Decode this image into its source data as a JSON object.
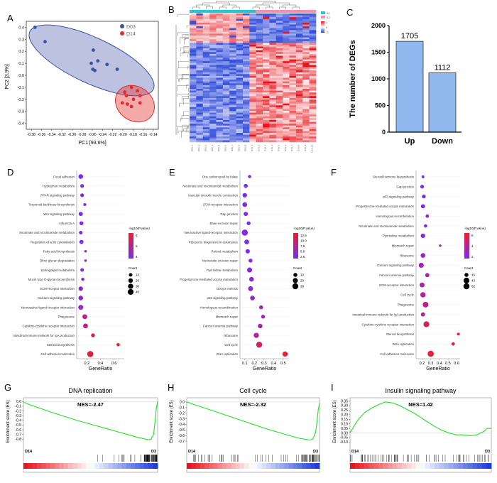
{
  "panels": {
    "A": "A",
    "B": "B",
    "C": "C",
    "D": "D",
    "E": "E",
    "F": "F",
    "G": "G",
    "H": "H",
    "I": "I"
  },
  "colors": {
    "d03": "#3f4fa3",
    "d14": "#e62a2a",
    "bar": "#8fb8ee",
    "gsea": "#22e026",
    "dot_high": "#ee1c2e",
    "dot_low": "#7a2cf0",
    "heat_low": "#1f3cd8",
    "heat_mid": "#ffffff",
    "heat_high": "#e6141c",
    "group_a": "#23c6d3",
    "group_b": "#f18fb6"
  },
  "chart_data": [
    {
      "id": "A",
      "type": "scatter",
      "xlabel": "PC1 [93.6%]",
      "ylabel": "PC2 [3.9%]",
      "xlim": [
        -0.39,
        -0.13
      ],
      "ylim": [
        -0.45,
        0.45
      ],
      "xticks": [
        "-0.38",
        "-0.36",
        "-0.34",
        "-0.32",
        "-0.30",
        "-0.28",
        "-0.26",
        "-0.24",
        "-0.22",
        "-0.20",
        "-0.18",
        "-0.16",
        "-0.14"
      ],
      "yticks": [
        "-0.4",
        "-0.3",
        "-0.2",
        "-0.1",
        "0.0",
        "0.1",
        "0.2",
        "0.3",
        "0.4"
      ],
      "legend": [
        "D03",
        "D14"
      ],
      "series": [
        {
          "name": "D03",
          "points": [
            [
              -0.373,
              0.4
            ],
            [
              -0.353,
              0.28
            ],
            [
              -0.258,
              0.21
            ],
            [
              -0.249,
              0.12
            ],
            [
              -0.262,
              0.1
            ],
            [
              -0.259,
              0.05
            ],
            [
              -0.231,
              0.09
            ],
            [
              -0.211,
              0.05
            ],
            [
              -0.255,
              0.04
            ]
          ]
        },
        {
          "name": "D14",
          "points": [
            [
              -0.183,
              -0.1
            ],
            [
              -0.171,
              -0.13
            ],
            [
              -0.196,
              -0.14
            ],
            [
              -0.193,
              -0.17
            ],
            [
              -0.166,
              -0.17
            ],
            [
              -0.179,
              -0.2
            ],
            [
              -0.201,
              -0.23
            ],
            [
              -0.166,
              -0.23
            ],
            [
              -0.191,
              -0.24
            ],
            [
              -0.183,
              -0.26
            ]
          ]
        }
      ]
    },
    {
      "id": "B",
      "type": "heatmap",
      "legend_labels": [
        "A1",
        "A2"
      ],
      "color_scale": [
        "2",
        "0",
        "-2"
      ],
      "column_labels": [
        "D03_1",
        "D03_2",
        "D03_3",
        "D03_4",
        "D03_5",
        "D03_6",
        "D03_7",
        "D03_8",
        "D03_9",
        "D14_1",
        "D14_2",
        "D14_3",
        "D14_4",
        "D14_5",
        "D14_6",
        "D14_7",
        "D14_8",
        "D14_9",
        "D14_10"
      ]
    },
    {
      "id": "C",
      "type": "bar",
      "categories": [
        "Up",
        "Down"
      ],
      "values": [
        1705,
        1112
      ],
      "ylabel": "The number of DEGs",
      "ylim": [
        0,
        2000
      ],
      "yticks": [
        "0",
        "500",
        "1000",
        "1500",
        "2000"
      ]
    },
    {
      "id": "D",
      "type": "scatter",
      "xlabel": "GeneRatio",
      "xlim": [
        0.05,
        0.75
      ],
      "xticks": [
        "0.2",
        "0.4",
        "0.6"
      ],
      "terms": [
        "Focal adhesion",
        "Tryptophan metabolism",
        "PPAR signaling pathway",
        "Terpenoid backbone biosynthesis",
        "Wnt signaling pathway",
        "Influenza A",
        "Nicotinate and nicotinamide metabolism",
        "Regulation of actin cytoskeleton",
        "Fatty acid biosynthesis",
        "Other glycan degradation",
        "Sphingolipid metabolism",
        "Mucin type O-glycan biosynthesis",
        "ECM-receptor interaction",
        "Calcium signaling pathway",
        "Neuroactive ligand-receptor interaction",
        "Phagosome",
        "Cytokine-cytokine receptor interaction",
        "Intestinal immune network for IgA production",
        "Steroid biosynthesis",
        "Cell adhesion molecules"
      ],
      "ratio": [
        0.11,
        0.13,
        0.13,
        0.17,
        0.11,
        0.12,
        0.11,
        0.12,
        0.18,
        0.18,
        0.13,
        0.14,
        0.11,
        0.11,
        0.11,
        0.17,
        0.18,
        0.29,
        0.66,
        0.25
      ],
      "count": [
        22,
        12,
        11,
        5,
        16,
        14,
        10,
        16,
        3,
        3,
        10,
        7,
        20,
        22,
        26,
        24,
        25,
        13,
        8,
        45
      ],
      "neglogp": [
        3.0,
        3.3,
        3.5,
        3.4,
        3.0,
        3.3,
        3.1,
        3.0,
        4.2,
        3.5,
        3.6,
        3.7,
        4.0,
        4.0,
        4.2,
        5.5,
        5.9,
        6.9,
        8.0,
        7.5
      ],
      "color_label": "-log10(P.value)",
      "color_ticks": [
        "6",
        "5",
        "4"
      ],
      "size_label": "Count",
      "size_ticks": [
        "10",
        "20",
        "30",
        "40"
      ]
    },
    {
      "id": "E",
      "type": "scatter",
      "xlabel": "GeneRatio",
      "xlim": [
        0.05,
        0.56
      ],
      "xticks": [
        "0.1",
        "0.2",
        "0.3",
        "0.4",
        "0.5"
      ],
      "terms": [
        "One carbon pool by folate",
        "Nicotinate and nicotinamide metabolism",
        "Vascular smooth muscle contraction",
        "ECM-receptor interaction",
        "Gap junction",
        "Base excision repair",
        "Neuroactive ligand-receptor interaction",
        "Ribosome biogenesis in eukaryotes",
        "Retinol metabolism",
        "Nucleotide excision repair",
        "Pyrimidine metabolism",
        "Progesterone-mediated oocyte maturation",
        "Oocyte meiosis",
        "p53 signaling pathway",
        "Homologous recombination",
        "Mismatch repair",
        "Fanconi anemia pathway",
        "Ribosome",
        "Cell cycle",
        "DNA replication"
      ],
      "ratio": [
        0.15,
        0.11,
        0.1,
        0.1,
        0.11,
        0.14,
        0.1,
        0.12,
        0.13,
        0.16,
        0.15,
        0.17,
        0.16,
        0.18,
        0.27,
        0.29,
        0.26,
        0.22,
        0.25,
        0.52
      ],
      "count": [
        5,
        10,
        14,
        16,
        12,
        9,
        32,
        17,
        13,
        10,
        19,
        16,
        18,
        16,
        10,
        9,
        15,
        21,
        30,
        21
      ],
      "neglogp": [
        5.0,
        5.0,
        5.0,
        5.2,
        5.1,
        5.3,
        5.6,
        5.4,
        5.3,
        5.4,
        6.0,
        6.1,
        6.2,
        6.6,
        7.4,
        7.6,
        7.5,
        8.3,
        10.0,
        12.0
      ],
      "color_label": "-log10(P.value)",
      "color_ticks": [
        "12.5",
        "10.0",
        "7.5",
        "5.0",
        "2.5"
      ],
      "size_label": "Count",
      "size_ticks": [
        "10",
        "20",
        "30"
      ]
    },
    {
      "id": "F",
      "type": "scatter",
      "xlabel": "GeneRatio",
      "xlim": [
        0.13,
        0.64
      ],
      "xticks": [
        "0.2",
        "0.3",
        "0.4",
        "0.5",
        "0.6"
      ],
      "terms": [
        "Steroid hormone biosynthesis",
        "Gap junction",
        "p53 signaling pathway",
        "Progesterone-mediated oocyte maturation",
        "Homologous recombination",
        "Nicotinate and nicotinamide metabolism",
        "Pyrimidine metabolism",
        "Mismatch repair",
        "Ribosome",
        "Calcium signaling pathway",
        "Fanconi anemia pathway",
        "ECM-receptor interaction",
        "Cell cycle",
        "Phagosome",
        "Intestinal immune network for IgA production",
        "Cytokine-cytokine receptor interaction",
        "Steroid biosynthesis",
        "DNA replication",
        "Cell adhesion molecules"
      ],
      "ratio": [
        0.21,
        0.2,
        0.22,
        0.21,
        0.26,
        0.24,
        0.21,
        0.41,
        0.21,
        0.19,
        0.26,
        0.2,
        0.21,
        0.24,
        0.21,
        0.25,
        0.62,
        0.56,
        0.3
      ],
      "count": [
        5,
        12,
        13,
        17,
        10,
        9,
        20,
        3,
        24,
        30,
        17,
        27,
        34,
        40,
        17,
        43,
        5,
        9,
        48
      ],
      "neglogp": [
        1.8,
        2.0,
        2.0,
        2.2,
        2.7,
        2.5,
        2.5,
        4.5,
        2.8,
        3.2,
        3.4,
        3.5,
        4.0,
        4.3,
        4.0,
        5.5,
        6.5,
        6.0,
        6.2
      ],
      "color_label": "-log10(P.value)",
      "color_ticks": [
        "6",
        "4",
        "2"
      ],
      "size_label": "Count",
      "size_ticks": [
        "15",
        "43",
        "62"
      ]
    },
    {
      "id": "G",
      "type": "line",
      "title": "DNA replication",
      "nes": "NES=-2.47",
      "ylabel": "Enrichment score (ES)",
      "ylim": [
        -0.9,
        0.05
      ],
      "yticks": [
        "0.0",
        "-0.1",
        "-0.2",
        "-0.3",
        "-0.4",
        "-0.5",
        "-0.6",
        "-0.7",
        "-0.8"
      ],
      "left_label": "D14",
      "right_label": "D3",
      "x": [
        0,
        0.05,
        0.1,
        0.2,
        0.3,
        0.4,
        0.5,
        0.6,
        0.7,
        0.8,
        0.85,
        0.9,
        0.93,
        0.95,
        0.97,
        0.98,
        0.99,
        1.0
      ],
      "y": [
        -0.01,
        -0.07,
        -0.12,
        -0.22,
        -0.31,
        -0.4,
        -0.48,
        -0.56,
        -0.64,
        -0.72,
        -0.76,
        -0.79,
        -0.81,
        -0.8,
        -0.7,
        -0.45,
        -0.15,
        0.0
      ]
    },
    {
      "id": "H",
      "type": "line",
      "title": "Cell cycle",
      "nes": "NES=-2.32",
      "ylabel": "Enrichment score (ES)",
      "ylim": [
        -0.75,
        0.05
      ],
      "yticks": [
        "0.0",
        "-0.1",
        "-0.2",
        "-0.3",
        "-0.4",
        "-0.5",
        "-0.6",
        "-0.7"
      ],
      "left_label": "D14",
      "right_label": "D3",
      "x": [
        0,
        0.05,
        0.1,
        0.2,
        0.3,
        0.4,
        0.5,
        0.6,
        0.7,
        0.8,
        0.85,
        0.9,
        0.93,
        0.95,
        0.97,
        0.98,
        0.99,
        1.0
      ],
      "y": [
        0.0,
        -0.04,
        -0.08,
        -0.16,
        -0.24,
        -0.32,
        -0.4,
        -0.48,
        -0.55,
        -0.62,
        -0.65,
        -0.67,
        -0.68,
        -0.66,
        -0.55,
        -0.38,
        -0.15,
        -0.02
      ]
    },
    {
      "id": "I",
      "type": "line",
      "title": "Insulin signaling pathway",
      "nes": "NES=1.42",
      "ylabel": "Enrichment score (ES)",
      "ylim": [
        -0.12,
        0.37
      ],
      "yticks": [
        "0.35",
        "0.30",
        "0.25",
        "0.20",
        "0.15",
        "0.10",
        "0.05",
        "0.00",
        "-0.05",
        "-0.10"
      ],
      "left_label": "D14",
      "right_label": "D3",
      "x": [
        0,
        0.03,
        0.06,
        0.1,
        0.15,
        0.2,
        0.25,
        0.3,
        0.35,
        0.4,
        0.45,
        0.5,
        0.55,
        0.6,
        0.65,
        0.7,
        0.75,
        0.8,
        0.85,
        0.9,
        0.95,
        0.97,
        1.0
      ],
      "y": [
        0.0,
        0.08,
        0.15,
        0.22,
        0.27,
        0.31,
        0.34,
        0.33,
        0.3,
        0.26,
        0.22,
        0.17,
        0.12,
        0.07,
        0.03,
        0.0,
        -0.02,
        -0.02,
        -0.03,
        -0.02,
        0.02,
        0.05,
        0.05
      ]
    }
  ]
}
